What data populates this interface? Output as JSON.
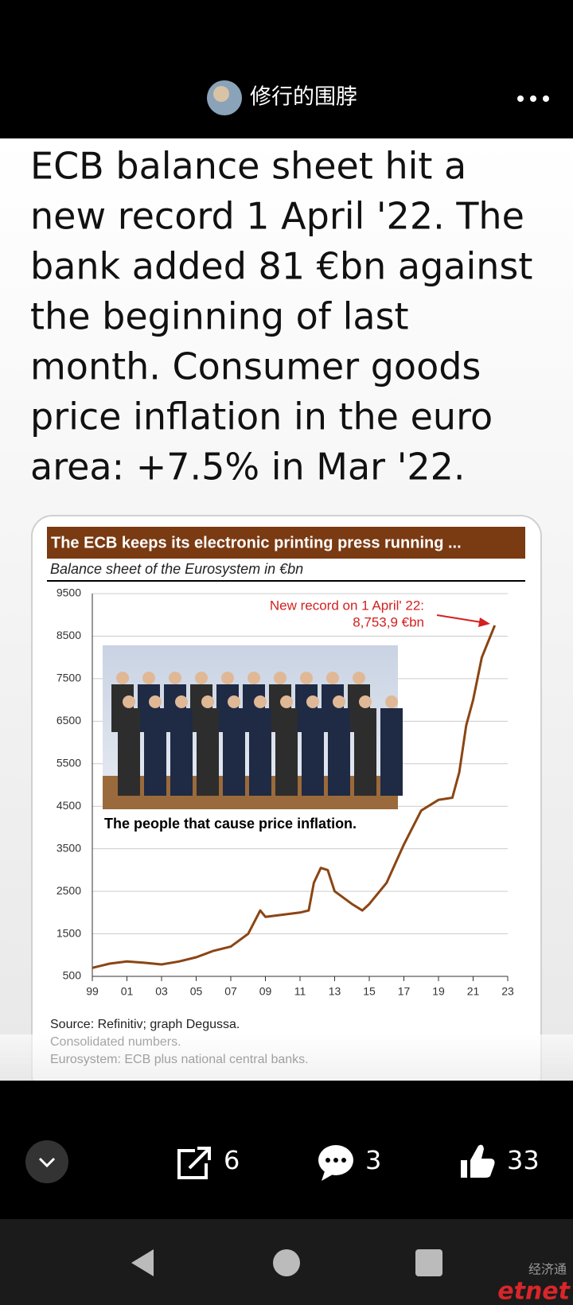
{
  "header": {
    "username": "修行的围脖"
  },
  "post": {
    "text_lines": [
      "ECB balance sheet hit a",
      "new record 1 April '22. The",
      "bank added 81 €bn against",
      "the beginning of last",
      "month. Consumer goods",
      "price inflation in the euro",
      "area: +7.5% in Mar '22."
    ]
  },
  "chart_data": {
    "type": "line",
    "title": "The ECB keeps its electronic printing press running ...",
    "subtitle": "Balance sheet of the Eurosystem in €bn",
    "annotation": [
      "New record on 1 April' 22:",
      "8,753,9  €bn"
    ],
    "image_caption": "The people that cause price inflation.",
    "notes": [
      "Source: Refinitiv; graph Degussa.",
      "Consolidated numbers.",
      "Eurosystem: ECB plus national central banks."
    ],
    "x": [
      1999,
      2000,
      2001,
      2002,
      2003,
      2004,
      2005,
      2006,
      2007,
      2008,
      2008.7,
      2009,
      2010,
      2011,
      2011.5,
      2011.8,
      2012.2,
      2012.6,
      2013,
      2014,
      2014.6,
      2015,
      2016,
      2017,
      2018,
      2019,
      2019.8,
      2020.2,
      2020.6,
      2021,
      2021.5,
      2022.25
    ],
    "series": [
      {
        "name": "Balance sheet",
        "color": "#8b4513",
        "values": [
          700,
          800,
          850,
          820,
          780,
          850,
          950,
          1100,
          1200,
          1500,
          2050,
          1900,
          1950,
          2000,
          2050,
          2700,
          3050,
          3000,
          2500,
          2200,
          2050,
          2200,
          2700,
          3600,
          4400,
          4650,
          4700,
          5300,
          6400,
          7000,
          8000,
          8753.9
        ]
      }
    ],
    "xlim": [
      1999,
      2023
    ],
    "xticks": [
      {
        "value": 1999,
        "label": "99"
      },
      {
        "value": 2001,
        "label": "01"
      },
      {
        "value": 2003,
        "label": "03"
      },
      {
        "value": 2005,
        "label": "05"
      },
      {
        "value": 2007,
        "label": "07"
      },
      {
        "value": 2009,
        "label": "09"
      },
      {
        "value": 2011,
        "label": "11"
      },
      {
        "value": 2013,
        "label": "13"
      },
      {
        "value": 2015,
        "label": "15"
      },
      {
        "value": 2017,
        "label": "17"
      },
      {
        "value": 2019,
        "label": "19"
      },
      {
        "value": 2021,
        "label": "21"
      },
      {
        "value": 2023,
        "label": "23"
      }
    ],
    "ylim": [
      500,
      9500
    ],
    "yticks": [
      500,
      1500,
      2500,
      3500,
      4500,
      5500,
      6500,
      7500,
      8500,
      9500
    ],
    "grid": true
  },
  "actions": {
    "shares": 6,
    "comments": 3,
    "likes": 33
  },
  "watermark": [
    "经济通",
    "etnet"
  ]
}
